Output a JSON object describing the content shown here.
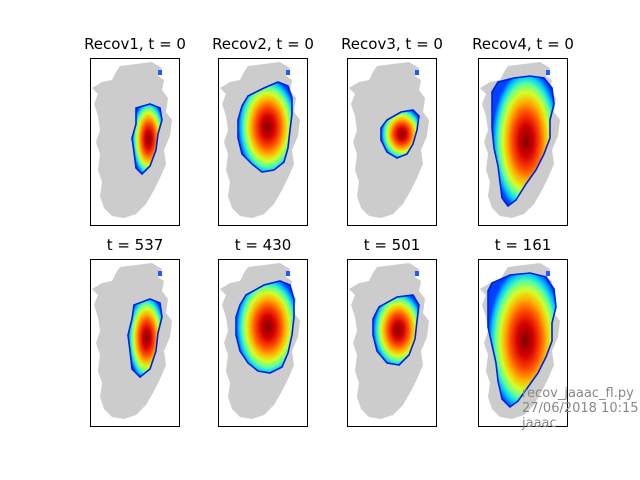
{
  "chart_data": [
    {
      "type": "heatmap",
      "title": "Recov1, t = 0"
    },
    {
      "type": "heatmap",
      "title": "Recov2, t = 0"
    },
    {
      "type": "heatmap",
      "title": "Recov3, t = 0"
    },
    {
      "type": "heatmap",
      "title": "Recov4, t = 0"
    },
    {
      "type": "heatmap",
      "title": "t = 537"
    },
    {
      "type": "heatmap",
      "title": "t = 430"
    },
    {
      "type": "heatmap",
      "title": "t = 501"
    },
    {
      "type": "heatmap",
      "title": "t = 161"
    }
  ],
  "colors": {
    "land": "#cccccc",
    "colormap": "jet",
    "frame": "#000000"
  },
  "watermark": {
    "line1": "recov_jaaac_fl.py",
    "line2": "27/06/2018 10:15",
    "line3": "jaaac"
  }
}
